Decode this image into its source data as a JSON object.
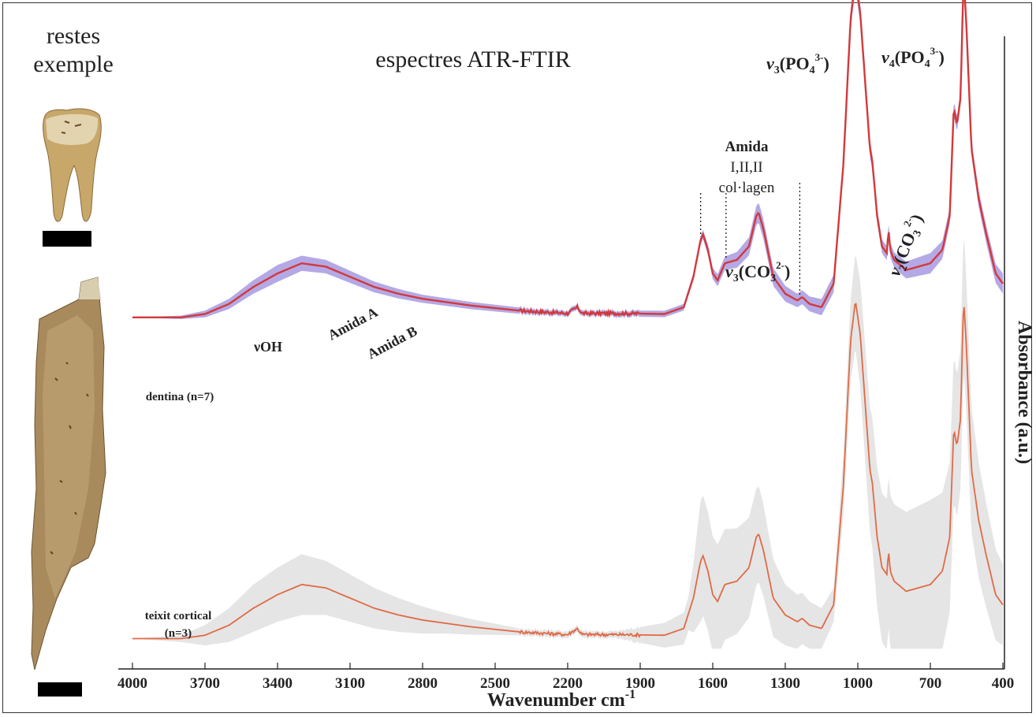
{
  "panel": {
    "header_line1": "restes",
    "header_line2": "exemple"
  },
  "chart_data": {
    "type": "line",
    "title": "espectres ATR-FTIR",
    "xlabel": "Wavenumber cm-1",
    "xlabel_main": "Wavenumber cm",
    "xlabel_sup": "-1",
    "ylabel": "Absorbance (a.u.)",
    "xlim": [
      4000,
      400
    ],
    "xticks": [
      "4000",
      "3700",
      "3400",
      "3100",
      "2800",
      "2500",
      "2200",
      "1900",
      "1600",
      "1300",
      "1000",
      "700",
      "400"
    ],
    "ylim": [
      -0.05,
      1.8
    ],
    "grid": false,
    "series": [
      {
        "name": "dentina (n=7)",
        "color": "#d2393b",
        "band_color": "#a79ae0",
        "offset": 0.95,
        "points": [
          [
            4000,
            0.0
          ],
          [
            3800,
            0.0
          ],
          [
            3700,
            0.01
          ],
          [
            3600,
            0.04
          ],
          [
            3500,
            0.09
          ],
          [
            3400,
            0.13
          ],
          [
            3300,
            0.16
          ],
          [
            3200,
            0.15
          ],
          [
            3100,
            0.12
          ],
          [
            3000,
            0.09
          ],
          [
            2900,
            0.07
          ],
          [
            2800,
            0.055
          ],
          [
            2600,
            0.035
          ],
          [
            2400,
            0.02
          ],
          [
            2200,
            0.012
          ],
          [
            2160,
            0.03
          ],
          [
            2140,
            0.012
          ],
          [
            2000,
            0.012
          ],
          [
            1800,
            0.01
          ],
          [
            1720,
            0.03
          ],
          [
            1680,
            0.12
          ],
          [
            1650,
            0.23
          ],
          [
            1640,
            0.245
          ],
          [
            1620,
            0.2
          ],
          [
            1600,
            0.13
          ],
          [
            1580,
            0.11
          ],
          [
            1550,
            0.16
          ],
          [
            1500,
            0.17
          ],
          [
            1450,
            0.21
          ],
          [
            1420,
            0.3
          ],
          [
            1410,
            0.31
          ],
          [
            1390,
            0.26
          ],
          [
            1350,
            0.12
          ],
          [
            1300,
            0.07
          ],
          [
            1250,
            0.05
          ],
          [
            1230,
            0.06
          ],
          [
            1200,
            0.04
          ],
          [
            1150,
            0.03
          ],
          [
            1100,
            0.1
          ],
          [
            1060,
            0.45
          ],
          [
            1030,
            0.88
          ],
          [
            1010,
            1.0
          ],
          [
            990,
            0.9
          ],
          [
            960,
            0.6
          ],
          [
            950,
            0.5
          ],
          [
            940,
            0.46
          ],
          [
            920,
            0.3
          ],
          [
            900,
            0.21
          ],
          [
            880,
            0.19
          ],
          [
            873,
            0.26
          ],
          [
            866,
            0.2
          ],
          [
            850,
            0.17
          ],
          [
            800,
            0.14
          ],
          [
            700,
            0.16
          ],
          [
            650,
            0.2
          ],
          [
            620,
            0.3
          ],
          [
            603,
            0.62
          ],
          [
            590,
            0.57
          ],
          [
            575,
            0.65
          ],
          [
            565,
            0.95
          ],
          [
            560,
            0.98
          ],
          [
            550,
            0.85
          ],
          [
            530,
            0.5
          ],
          [
            500,
            0.35
          ],
          [
            470,
            0.25
          ],
          [
            430,
            0.13
          ],
          [
            400,
            0.1
          ]
        ],
        "band_width": [
          [
            4000,
            0.0
          ],
          [
            3800,
            0.005
          ],
          [
            3400,
            0.025
          ],
          [
            3200,
            0.02
          ],
          [
            2800,
            0.012
          ],
          [
            2200,
            0.008
          ],
          [
            1700,
            0.01
          ],
          [
            1400,
            0.03
          ],
          [
            1250,
            0.02
          ],
          [
            1000,
            0.03
          ],
          [
            900,
            0.02
          ],
          [
            700,
            0.03
          ],
          [
            560,
            0.02
          ],
          [
            400,
            0.03
          ]
        ]
      },
      {
        "name": "teixit cortical (n=3)",
        "color": "#e06a45",
        "band_color": "#e2e2e2",
        "offset": 0.0,
        "points": [
          [
            4000,
            0.0
          ],
          [
            3800,
            0.0
          ],
          [
            3700,
            0.01
          ],
          [
            3600,
            0.04
          ],
          [
            3500,
            0.09
          ],
          [
            3400,
            0.13
          ],
          [
            3300,
            0.16
          ],
          [
            3200,
            0.15
          ],
          [
            3100,
            0.12
          ],
          [
            3000,
            0.09
          ],
          [
            2900,
            0.07
          ],
          [
            2800,
            0.055
          ],
          [
            2600,
            0.035
          ],
          [
            2400,
            0.02
          ],
          [
            2200,
            0.012
          ],
          [
            2160,
            0.03
          ],
          [
            2140,
            0.012
          ],
          [
            2000,
            0.012
          ],
          [
            1800,
            0.01
          ],
          [
            1720,
            0.03
          ],
          [
            1680,
            0.12
          ],
          [
            1650,
            0.23
          ],
          [
            1640,
            0.245
          ],
          [
            1620,
            0.2
          ],
          [
            1600,
            0.13
          ],
          [
            1580,
            0.11
          ],
          [
            1550,
            0.16
          ],
          [
            1500,
            0.17
          ],
          [
            1450,
            0.21
          ],
          [
            1420,
            0.3
          ],
          [
            1410,
            0.31
          ],
          [
            1390,
            0.26
          ],
          [
            1350,
            0.12
          ],
          [
            1300,
            0.07
          ],
          [
            1250,
            0.05
          ],
          [
            1230,
            0.06
          ],
          [
            1200,
            0.04
          ],
          [
            1150,
            0.03
          ],
          [
            1100,
            0.1
          ],
          [
            1060,
            0.45
          ],
          [
            1030,
            0.88
          ],
          [
            1010,
            1.0
          ],
          [
            990,
            0.9
          ],
          [
            960,
            0.6
          ],
          [
            950,
            0.5
          ],
          [
            940,
            0.46
          ],
          [
            920,
            0.3
          ],
          [
            900,
            0.21
          ],
          [
            880,
            0.19
          ],
          [
            873,
            0.26
          ],
          [
            866,
            0.2
          ],
          [
            850,
            0.17
          ],
          [
            800,
            0.14
          ],
          [
            700,
            0.16
          ],
          [
            650,
            0.2
          ],
          [
            620,
            0.3
          ],
          [
            603,
            0.62
          ],
          [
            590,
            0.57
          ],
          [
            575,
            0.65
          ],
          [
            565,
            0.95
          ],
          [
            560,
            0.98
          ],
          [
            550,
            0.85
          ],
          [
            530,
            0.5
          ],
          [
            500,
            0.35
          ],
          [
            470,
            0.25
          ],
          [
            430,
            0.13
          ],
          [
            400,
            0.1
          ]
        ],
        "band_width": [
          [
            4000,
            0.0
          ],
          [
            3800,
            0.01
          ],
          [
            3500,
            0.07
          ],
          [
            3300,
            0.09
          ],
          [
            3000,
            0.06
          ],
          [
            2700,
            0.03
          ],
          [
            2400,
            0.01
          ],
          [
            2000,
            0.01
          ],
          [
            1700,
            0.05
          ],
          [
            1650,
            0.18
          ],
          [
            1400,
            0.14
          ],
          [
            1300,
            0.09
          ],
          [
            1100,
            0.05
          ],
          [
            1000,
            0.15
          ],
          [
            900,
            0.22
          ],
          [
            700,
            0.25
          ],
          [
            560,
            0.2
          ],
          [
            400,
            0.12
          ]
        ]
      }
    ],
    "series_labels": {
      "dentina": "dentina (n=7)",
      "cortical_line1": "teixit cortical",
      "cortical_line2": "(n=3)"
    },
    "annotations": {
      "voh": "νOH",
      "amida_a": "Amida A",
      "amida_b": "Amida B",
      "amida_title": "Amida",
      "amida_sub1": "I,II,II",
      "amida_sub2": "col·lagen",
      "v3_po4": "ν3(PO4 3-)",
      "v4_po4": "ν4(PO4 3-)",
      "v3_co3": "ν3(CO3 2-)",
      "v2_co3": "ν2(CO3 2-)",
      "nu": "ν",
      "sub3": "3",
      "sub4": "4",
      "sub2": "2",
      "po4": "(PO",
      "co3": "(CO",
      "sup_po4": "3-",
      "sup_co3": "2-",
      "close": ")"
    },
    "amide_lines": [
      1650,
      1545,
      1240
    ],
    "legend": "inline labels, left of traces"
  }
}
